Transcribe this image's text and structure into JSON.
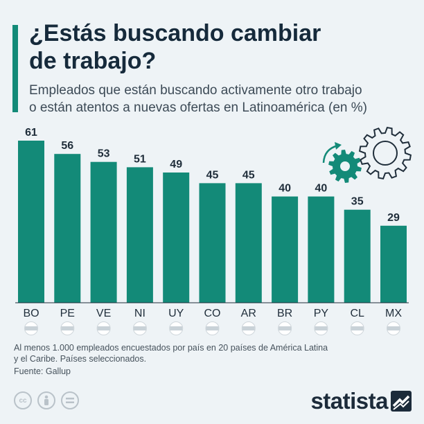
{
  "header": {
    "title_line1": "¿Estás buscando cambiar",
    "title_line2": "de trabajo?",
    "subtitle_line1": "Empleados que están buscando activamente otro trabajo",
    "subtitle_line2": "o están atentos a nuevas ofertas en Latinoamérica (en %)"
  },
  "chart_data": {
    "type": "bar",
    "title": "¿Estás buscando cambiar de trabajo?",
    "ylabel": "%",
    "ylim": [
      0,
      65
    ],
    "categories": [
      "BO",
      "PE",
      "VE",
      "NI",
      "UY",
      "CO",
      "AR",
      "BR",
      "PY",
      "CL",
      "MX"
    ],
    "values": [
      61,
      56,
      53,
      51,
      49,
      45,
      45,
      40,
      40,
      35,
      29
    ],
    "bar_color": "#138a78"
  },
  "footer": {
    "note_line1": "Al menos 1.000 empleados encuestados por país en 20 países de América Latina",
    "note_line2": "y el Caribe. Países seleccionados.",
    "source": "Fuente: Gallup",
    "brand": "statista"
  },
  "colors": {
    "accent": "#138a78",
    "title": "#162a3b",
    "background": "#eef3f6"
  },
  "icons": [
    "gears-icon",
    "flag-icon",
    "cc-icon",
    "attribution-icon",
    "no-derivatives-icon",
    "statista-logo-icon"
  ]
}
